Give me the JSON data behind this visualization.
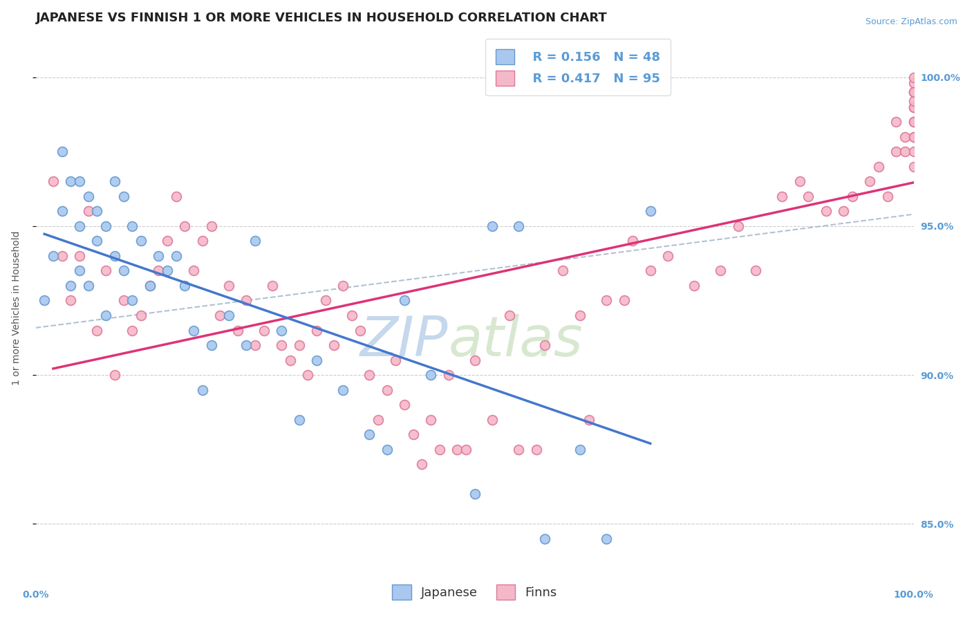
{
  "title": "JAPANESE VS FINNISH 1 OR MORE VEHICLES IN HOUSEHOLD CORRELATION CHART",
  "source_text": "Source: ZipAtlas.com",
  "ylabel": "1 or more Vehicles in Household",
  "xlim": [
    0,
    100
  ],
  "ylim": [
    83.0,
    101.5
  ],
  "yticks": [
    85.0,
    90.0,
    95.0,
    100.0
  ],
  "xticklabels": [
    "0.0%",
    "100.0%"
  ],
  "yticklabels": [
    "85.0%",
    "90.0%",
    "95.0%",
    "100.0%"
  ],
  "legend_R_japanese": "R = 0.156",
  "legend_N_japanese": "N = 48",
  "legend_R_finns": "R = 0.417",
  "legend_N_finns": "N = 95",
  "japanese_color": "#A8C8F0",
  "finns_color": "#F5B8C8",
  "japanese_edge_color": "#6699CC",
  "finns_edge_color": "#DD7799",
  "trend_japanese_color": "#4477CC",
  "trend_finns_color": "#DD3377",
  "overall_trend_color": "#AABBCC",
  "watermark_text": "ZIPatlas",
  "watermark_color": "#D0E4F0",
  "background_color": "#FFFFFF",
  "japanese_x": [
    1,
    2,
    3,
    3,
    4,
    4,
    5,
    5,
    5,
    6,
    6,
    7,
    7,
    8,
    8,
    9,
    9,
    10,
    10,
    11,
    11,
    12,
    13,
    14,
    15,
    16,
    17,
    18,
    19,
    20,
    22,
    24,
    25,
    28,
    30,
    32,
    35,
    38,
    40,
    42,
    45,
    50,
    52,
    55,
    58,
    62,
    65,
    70
  ],
  "japanese_y": [
    92.5,
    94.0,
    95.5,
    97.5,
    93.0,
    96.5,
    95.0,
    96.5,
    93.5,
    93.0,
    96.0,
    94.5,
    95.5,
    92.0,
    95.0,
    94.0,
    96.5,
    93.5,
    96.0,
    92.5,
    95.0,
    94.5,
    93.0,
    94.0,
    93.5,
    94.0,
    93.0,
    91.5,
    89.5,
    91.0,
    92.0,
    91.0,
    94.5,
    91.5,
    88.5,
    90.5,
    89.5,
    88.0,
    87.5,
    92.5,
    90.0,
    86.0,
    95.0,
    95.0,
    84.5,
    87.5,
    84.5,
    95.5
  ],
  "finns_x": [
    2,
    3,
    4,
    5,
    6,
    7,
    8,
    9,
    10,
    11,
    12,
    13,
    14,
    15,
    16,
    17,
    18,
    19,
    20,
    21,
    22,
    23,
    24,
    25,
    26,
    27,
    28,
    29,
    30,
    31,
    32,
    33,
    34,
    35,
    36,
    37,
    38,
    39,
    40,
    41,
    42,
    43,
    44,
    45,
    46,
    47,
    48,
    49,
    50,
    52,
    54,
    55,
    57,
    58,
    60,
    62,
    63,
    65,
    67,
    68,
    70,
    72,
    75,
    78,
    80,
    82,
    85,
    87,
    88,
    90,
    92,
    93,
    95,
    96,
    97,
    98,
    98,
    99,
    99,
    100,
    100,
    100,
    100,
    100,
    100,
    100,
    100,
    100,
    100,
    100,
    100,
    100,
    100,
    100,
    100
  ],
  "finns_y": [
    96.5,
    94.0,
    92.5,
    94.0,
    95.5,
    91.5,
    93.5,
    90.0,
    92.5,
    91.5,
    92.0,
    93.0,
    93.5,
    94.5,
    96.0,
    95.0,
    93.5,
    94.5,
    95.0,
    92.0,
    93.0,
    91.5,
    92.5,
    91.0,
    91.5,
    93.0,
    91.0,
    90.5,
    91.0,
    90.0,
    91.5,
    92.5,
    91.0,
    93.0,
    92.0,
    91.5,
    90.0,
    88.5,
    89.5,
    90.5,
    89.0,
    88.0,
    87.0,
    88.5,
    87.5,
    90.0,
    87.5,
    87.5,
    90.5,
    88.5,
    92.0,
    87.5,
    87.5,
    91.0,
    93.5,
    92.0,
    88.5,
    92.5,
    92.5,
    94.5,
    93.5,
    94.0,
    93.0,
    93.5,
    95.0,
    93.5,
    96.0,
    96.5,
    96.0,
    95.5,
    95.5,
    96.0,
    96.5,
    97.0,
    96.0,
    97.5,
    98.5,
    97.5,
    98.0,
    98.5,
    99.0,
    99.5,
    98.0,
    97.5,
    97.0,
    98.0,
    99.0,
    98.5,
    99.5,
    99.8,
    99.0,
    98.5,
    99.2,
    99.5,
    100.0
  ],
  "marker_size": 100,
  "title_fontsize": 13,
  "axis_label_fontsize": 10,
  "tick_fontsize": 10,
  "legend_fontsize": 13
}
